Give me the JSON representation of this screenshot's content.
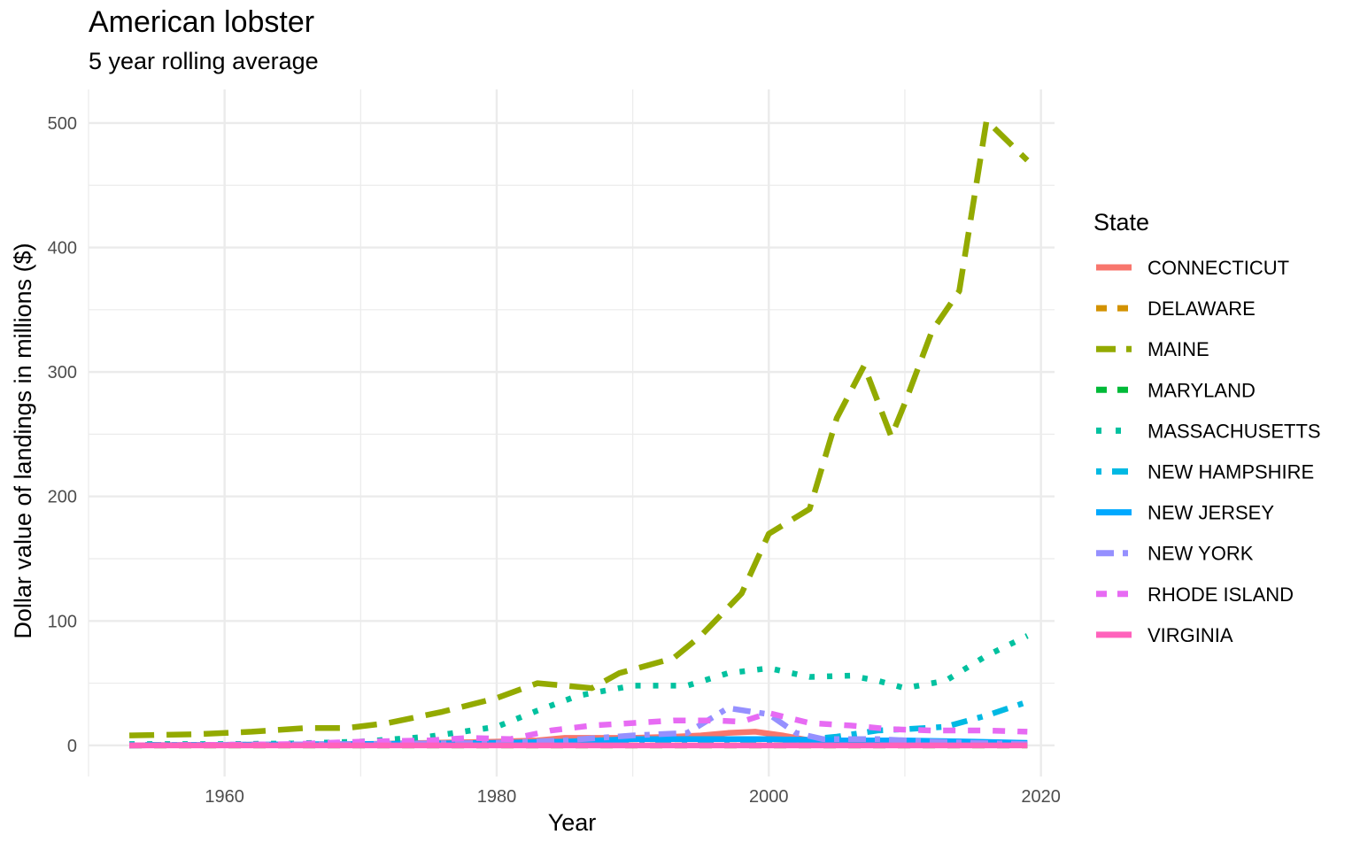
{
  "chart_data": {
    "type": "line",
    "title": "American lobster",
    "subtitle": "5 year rolling average",
    "xlabel": "Year",
    "ylabel": "Dollar value of landings in millions ($)",
    "xlim": [
      1950,
      2021
    ],
    "ylim": [
      -25,
      527
    ],
    "xticks": [
      1960,
      1980,
      2000,
      2020
    ],
    "yticks": [
      0,
      100,
      200,
      300,
      400,
      500
    ],
    "grid": true,
    "legend_title": "State",
    "legend_position": "right",
    "series": [
      {
        "name": "CONNECTICUT",
        "color": "#F8766D",
        "dash": "solid",
        "x": [
          1953,
          1960,
          1970,
          1975,
          1980,
          1983,
          1985,
          1988,
          1990,
          1993,
          1995,
          1997,
          1999,
          2001,
          2003,
          2006,
          2010,
          2015,
          2019
        ],
        "y": [
          0,
          0.5,
          1,
          2,
          3,
          4,
          6,
          6,
          6,
          7,
          8,
          10,
          11,
          8,
          4,
          3,
          2,
          1,
          0.5
        ]
      },
      {
        "name": "DELAWARE",
        "color": "#D39200",
        "dash": "dash",
        "x": [
          1953,
          1970,
          1985,
          1996,
          2000,
          2019
        ],
        "y": [
          0,
          0,
          0,
          0,
          0,
          0
        ]
      },
      {
        "name": "MAINE",
        "color": "#93AA00",
        "dash": "longdash",
        "x": [
          1953,
          1958,
          1962,
          1966,
          1969,
          1972,
          1976,
          1980,
          1983,
          1987,
          1989,
          1993,
          1995,
          1998,
          2000,
          2003,
          2005,
          2007,
          2009,
          2010,
          2012,
          2014,
          2016,
          2019
        ],
        "y": [
          8,
          9,
          11,
          14,
          14,
          18,
          27,
          38,
          50,
          46,
          58,
          70,
          88,
          122,
          170,
          190,
          263,
          305,
          248,
          275,
          333,
          365,
          502,
          470
        ]
      },
      {
        "name": "MARYLAND",
        "color": "#00BA38",
        "dash": "dash",
        "x": [
          1953,
          1975,
          1990,
          2005,
          2019
        ],
        "y": [
          0,
          0,
          0,
          0,
          0
        ]
      },
      {
        "name": "MASSACHUSETTS",
        "color": "#00C19F",
        "dash": "dotted",
        "x": [
          1953,
          1960,
          1965,
          1970,
          1975,
          1980,
          1983,
          1986,
          1990,
          1994,
          1997,
          2000,
          2003,
          2006,
          2008,
          2010,
          2013,
          2016,
          2019
        ],
        "y": [
          1,
          1,
          1.5,
          3,
          7,
          15,
          28,
          40,
          48,
          48,
          58,
          62,
          55,
          56,
          52,
          46,
          52,
          72,
          88
        ]
      },
      {
        "name": "NEW HAMPSHIRE",
        "color": "#00B9E3",
        "dash": "dotdash",
        "x": [
          1953,
          1960,
          1970,
          1980,
          1990,
          1995,
          2000,
          2003,
          2005,
          2008,
          2010,
          2013,
          2016,
          2019
        ],
        "y": [
          0.5,
          0.5,
          1,
          1,
          2,
          2,
          3,
          5,
          7,
          12,
          13,
          15,
          24,
          35
        ]
      },
      {
        "name": "NEW JERSEY",
        "color": "#00A9FF",
        "dash": "solid",
        "x": [
          1953,
          1970,
          1980,
          1985,
          1990,
          1995,
          2000,
          2005,
          2010,
          2015,
          2019
        ],
        "y": [
          0,
          1,
          2,
          3,
          5,
          5,
          5,
          4,
          4,
          3,
          2
        ]
      },
      {
        "name": "NEW YORK",
        "color": "#9590FF",
        "dash": "dashdot",
        "x": [
          1953,
          1960,
          1970,
          1980,
          1985,
          1990,
          1994,
          1997,
          2000,
          2002,
          2004,
          2008,
          2012,
          2015,
          2019
        ],
        "y": [
          0,
          0.5,
          1,
          2,
          4,
          8,
          10,
          30,
          25,
          10,
          5,
          5,
          3,
          2,
          1
        ]
      },
      {
        "name": "RHODE ISLAND",
        "color": "#E76BF3",
        "dash": "dash",
        "x": [
          1953,
          1960,
          1965,
          1970,
          1975,
          1978,
          1981,
          1984,
          1987,
          1990,
          1993,
          1996,
          1998,
          2000,
          2003,
          2006,
          2009,
          2012,
          2016,
          2019
        ],
        "y": [
          0,
          0.5,
          1,
          3,
          4,
          6,
          5,
          12,
          16,
          18,
          20,
          20,
          19,
          26,
          18,
          16,
          13,
          12,
          12,
          11
        ]
      },
      {
        "name": "VIRGINIA",
        "color": "#FF62BC",
        "dash": "solid",
        "x": [
          1953,
          1970,
          1990,
          2000,
          2010,
          2019
        ],
        "y": [
          0,
          0,
          0,
          0,
          0,
          0
        ]
      }
    ]
  }
}
